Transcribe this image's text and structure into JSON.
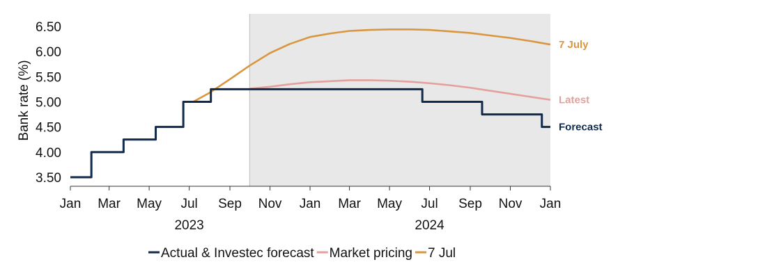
{
  "chart_data": {
    "type": "line",
    "ylabel": "Bank rate (%)",
    "ylim": [
      3.5,
      6.5
    ],
    "yticks": [
      3.5,
      4.0,
      4.5,
      5.0,
      5.5,
      6.0,
      6.5
    ],
    "ytick_labels": [
      "3.50",
      "4.00",
      "4.50",
      "5.00",
      "5.50",
      "6.00",
      "6.50"
    ],
    "x_range": [
      "2023-01-01",
      "2025-01-01"
    ],
    "xticks": [
      {
        "date": "2023-01-01",
        "label": "Jan"
      },
      {
        "date": "2023-03-01",
        "label": "Mar"
      },
      {
        "date": "2023-05-01",
        "label": "May"
      },
      {
        "date": "2023-07-01",
        "label": "Jul"
      },
      {
        "date": "2023-09-01",
        "label": "Sep"
      },
      {
        "date": "2023-11-01",
        "label": "Nov"
      },
      {
        "date": "2024-01-01",
        "label": "Jan"
      },
      {
        "date": "2024-03-01",
        "label": "Mar"
      },
      {
        "date": "2024-05-01",
        "label": "May"
      },
      {
        "date": "2024-07-01",
        "label": "Jul"
      },
      {
        "date": "2024-09-01",
        "label": "Sep"
      },
      {
        "date": "2024-11-01",
        "label": "Nov"
      },
      {
        "date": "2025-01-01",
        "label": "Jan"
      }
    ],
    "year_labels": [
      {
        "date": "2023-07-01",
        "label": "2023"
      },
      {
        "date": "2024-07-01",
        "label": "2024"
      }
    ],
    "forecast_shading": {
      "start": "2023-10-01",
      "end": "2025-01-01",
      "color": "#e8e8e8"
    },
    "grid": false,
    "legend_position": "bottom",
    "series": [
      {
        "name": "Actual & Investec forecast",
        "color": "#0f2a4a",
        "step": true,
        "end_label": "Forecast",
        "points": [
          {
            "x": "2023-01-01",
            "y": 3.5
          },
          {
            "x": "2023-02-02",
            "y": 4.0
          },
          {
            "x": "2023-03-23",
            "y": 4.25
          },
          {
            "x": "2023-05-11",
            "y": 4.5
          },
          {
            "x": "2023-06-22",
            "y": 5.0
          },
          {
            "x": "2023-08-03",
            "y": 5.25
          },
          {
            "x": "2024-06-20",
            "y": 5.0
          },
          {
            "x": "2024-09-19",
            "y": 4.75
          },
          {
            "x": "2024-12-19",
            "y": 4.5
          },
          {
            "x": "2025-01-01",
            "y": 4.5
          }
        ]
      },
      {
        "name": "Market pricing",
        "color": "#e3a09c",
        "step": false,
        "end_label": "Latest",
        "points": [
          {
            "x": "2023-10-01",
            "y": 5.26
          },
          {
            "x": "2023-11-01",
            "y": 5.3
          },
          {
            "x": "2023-12-01",
            "y": 5.35
          },
          {
            "x": "2024-01-01",
            "y": 5.39
          },
          {
            "x": "2024-02-01",
            "y": 5.41
          },
          {
            "x": "2024-03-01",
            "y": 5.43
          },
          {
            "x": "2024-04-01",
            "y": 5.43
          },
          {
            "x": "2024-05-01",
            "y": 5.42
          },
          {
            "x": "2024-06-01",
            "y": 5.4
          },
          {
            "x": "2024-07-01",
            "y": 5.37
          },
          {
            "x": "2024-08-01",
            "y": 5.33
          },
          {
            "x": "2024-09-01",
            "y": 5.28
          },
          {
            "x": "2024-10-01",
            "y": 5.22
          },
          {
            "x": "2024-11-01",
            "y": 5.16
          },
          {
            "x": "2024-12-01",
            "y": 5.1
          },
          {
            "x": "2025-01-01",
            "y": 5.04
          }
        ]
      },
      {
        "name": "7 Jul",
        "color": "#d9963e",
        "step": false,
        "end_label": "7 July",
        "points": [
          {
            "x": "2023-07-07",
            "y": 5.0
          },
          {
            "x": "2023-08-01",
            "y": 5.18
          },
          {
            "x": "2023-09-01",
            "y": 5.45
          },
          {
            "x": "2023-10-01",
            "y": 5.72
          },
          {
            "x": "2023-11-01",
            "y": 5.97
          },
          {
            "x": "2023-12-01",
            "y": 6.15
          },
          {
            "x": "2024-01-01",
            "y": 6.29
          },
          {
            "x": "2024-02-01",
            "y": 6.36
          },
          {
            "x": "2024-03-01",
            "y": 6.41
          },
          {
            "x": "2024-04-01",
            "y": 6.43
          },
          {
            "x": "2024-05-01",
            "y": 6.44
          },
          {
            "x": "2024-06-01",
            "y": 6.44
          },
          {
            "x": "2024-07-01",
            "y": 6.43
          },
          {
            "x": "2024-08-01",
            "y": 6.4
          },
          {
            "x": "2024-09-01",
            "y": 6.37
          },
          {
            "x": "2024-10-01",
            "y": 6.32
          },
          {
            "x": "2024-11-01",
            "y": 6.27
          },
          {
            "x": "2024-12-01",
            "y": 6.21
          },
          {
            "x": "2025-01-01",
            "y": 6.14
          }
        ]
      }
    ]
  }
}
